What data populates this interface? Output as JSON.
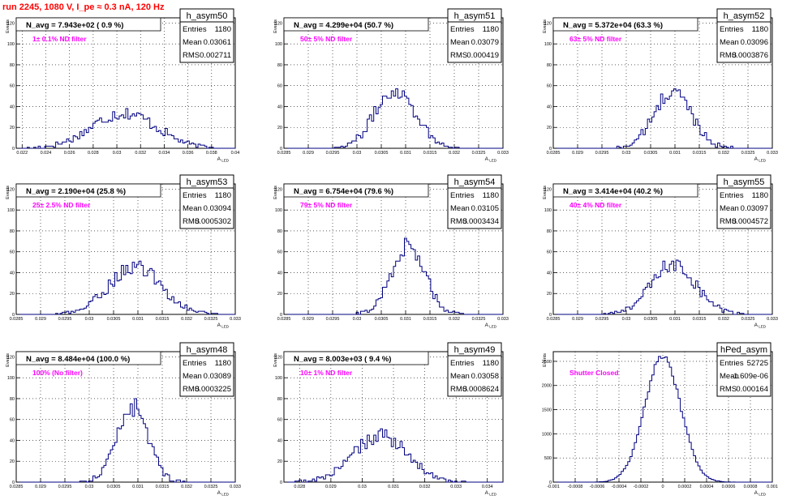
{
  "run_title": "run 2245,  1080 V, I_pe ≈ 0.3 nA, 120 Hz",
  "colors": {
    "title": "#ff0000",
    "annotation": "#ff00ff",
    "hist": "#000080",
    "text": "#000000"
  },
  "stats_labels": {
    "entries": "Entries",
    "mean": "Mean",
    "rms": "RMS"
  },
  "chart_data": [
    {
      "type": "histogram",
      "name": "h_asym50",
      "navg": "N_avg = 7.943e+02 ( 0.9 %)",
      "annotation": "1± 0.1% ND filter",
      "stats": {
        "entries": "1180",
        "mean": "0.03061",
        "rms": "0.002711"
      },
      "xlim": [
        0.0215,
        0.04
      ],
      "ylim": [
        0,
        125
      ],
      "xticks": [
        0.022,
        0.024,
        0.026,
        0.028,
        0.03,
        0.032,
        0.034,
        0.036,
        0.038,
        0.04
      ],
      "xtick_labels": [
        "0.022",
        "0.024",
        "0.026",
        "0.028",
        "0.03",
        "0.032",
        "0.034",
        "0.036",
        "0.038",
        "0.04"
      ],
      "yticks": [
        0,
        20,
        40,
        60,
        80,
        100,
        120
      ],
      "ylabel": "Events",
      "xlabel": "A",
      "center": 0.03061,
      "sigma": 0.002711,
      "peak": 34
    },
    {
      "type": "histogram",
      "name": "h_asym51",
      "navg": "N_avg = 4.299e+04 (50.7 %)",
      "annotation": "50± 5% ND filter",
      "stats": {
        "entries": "1180",
        "mean": "0.03079",
        "rms": "0.000419"
      },
      "xlim": [
        0.0285,
        0.033
      ],
      "ylim": [
        0,
        125
      ],
      "xticks": [
        0.0285,
        0.029,
        0.0295,
        0.03,
        0.0305,
        0.031,
        0.0315,
        0.032,
        0.0325,
        0.033
      ],
      "xtick_labels": [
        "0.0285",
        "0.029",
        "0.0295",
        "0.03",
        "0.0305",
        "0.031",
        "0.0315",
        "0.032",
        "0.0325",
        "0.033"
      ],
      "yticks": [
        0,
        20,
        40,
        60,
        80,
        100,
        120
      ],
      "ylabel": "Events",
      "xlabel": "A",
      "center": 0.03079,
      "sigma": 0.000419,
      "peak": 56
    },
    {
      "type": "histogram",
      "name": "h_asym52",
      "navg": "N_avg = 5.372e+04 (63.3 %)",
      "annotation": "63± 5% ND filter",
      "stats": {
        "entries": "1180",
        "mean": "0.03096",
        "rms": "0.0003876"
      },
      "xlim": [
        0.0285,
        0.033
      ],
      "ylim": [
        0,
        125
      ],
      "xticks": [
        0.0285,
        0.029,
        0.0295,
        0.03,
        0.0305,
        0.031,
        0.0315,
        0.032,
        0.0325,
        0.033
      ],
      "xtick_labels": [
        "0.0285",
        "0.029",
        "0.0295",
        "0.03",
        "0.0305",
        "0.031",
        "0.0315",
        "0.032",
        "0.0325",
        "0.033"
      ],
      "yticks": [
        0,
        20,
        40,
        60,
        80,
        100,
        120
      ],
      "ylabel": "Events",
      "xlabel": "A",
      "center": 0.03096,
      "sigma": 0.0003876,
      "peak": 54
    },
    {
      "type": "histogram",
      "name": "h_asym53",
      "navg": "N_avg = 2.190e+04 (25.8 %)",
      "annotation": "25± 2.5% ND filter",
      "stats": {
        "entries": "1180",
        "mean": "0.03094",
        "rms": "0.0005302"
      },
      "xlim": [
        0.0285,
        0.033
      ],
      "ylim": [
        0,
        125
      ],
      "xticks": [
        0.0285,
        0.029,
        0.0295,
        0.03,
        0.0305,
        0.031,
        0.0315,
        0.032,
        0.0325,
        0.033
      ],
      "xtick_labels": [
        "0.0285",
        "0.029",
        "0.0295",
        "0.03",
        "0.0305",
        "0.031",
        "0.0315",
        "0.032",
        "0.0325",
        "0.033"
      ],
      "yticks": [
        0,
        20,
        40,
        60,
        80,
        100,
        120
      ],
      "ylabel": "Events",
      "xlabel": "A",
      "center": 0.03094,
      "sigma": 0.0005302,
      "peak": 46
    },
    {
      "type": "histogram",
      "name": "h_asym54",
      "navg": "N_avg = 6.754e+04 (79.6 %)",
      "annotation": "79± 5% ND filter",
      "stats": {
        "entries": "1180",
        "mean": "0.03105",
        "rms": "0.0003434"
      },
      "xlim": [
        0.0285,
        0.033
      ],
      "ylim": [
        0,
        125
      ],
      "xticks": [
        0.0285,
        0.029,
        0.0295,
        0.03,
        0.0305,
        0.031,
        0.0315,
        0.032,
        0.0325,
        0.033
      ],
      "xtick_labels": [
        "0.0285",
        "0.029",
        "0.0295",
        "0.03",
        "0.0305",
        "0.031",
        "0.0315",
        "0.032",
        "0.0325",
        "0.033"
      ],
      "yticks": [
        0,
        20,
        40,
        60,
        80,
        100,
        120
      ],
      "ylabel": "Events",
      "xlabel": "A",
      "center": 0.03105,
      "sigma": 0.0003434,
      "peak": 66
    },
    {
      "type": "histogram",
      "name": "h_asym55",
      "navg": "N_avg = 3.414e+04 (40.2 %)",
      "annotation": "40± 4% ND filter",
      "stats": {
        "entries": "1180",
        "mean": "0.03097",
        "rms": "0.0004572"
      },
      "xlim": [
        0.0285,
        0.033
      ],
      "ylim": [
        0,
        125
      ],
      "xticks": [
        0.0285,
        0.029,
        0.0295,
        0.03,
        0.0305,
        0.031,
        0.0315,
        0.032,
        0.0325,
        0.033
      ],
      "xtick_labels": [
        "0.0285",
        "0.029",
        "0.0295",
        "0.03",
        "0.0305",
        "0.031",
        "0.0315",
        "0.032",
        "0.0325",
        "0.033"
      ],
      "yticks": [
        0,
        20,
        40,
        60,
        80,
        100,
        120
      ],
      "ylabel": "Events",
      "xlabel": "A",
      "center": 0.03097,
      "sigma": 0.0004572,
      "peak": 48
    },
    {
      "type": "histogram",
      "name": "h_asym48",
      "navg": "N_avg = 8.484e+04 (100.0 %)",
      "annotation": "100% (No filter)",
      "stats": {
        "entries": "1180",
        "mean": "0.03089",
        "rms": "0.0003225"
      },
      "xlim": [
        0.0285,
        0.033
      ],
      "ylim": [
        0,
        125
      ],
      "xticks": [
        0.0285,
        0.029,
        0.0295,
        0.03,
        0.0305,
        0.031,
        0.0315,
        0.032,
        0.0325,
        0.033
      ],
      "xtick_labels": [
        "0.0285",
        "0.029",
        "0.0295",
        "0.03",
        "0.0305",
        "0.031",
        "0.0315",
        "0.032",
        "0.0325",
        "0.033"
      ],
      "yticks": [
        0,
        20,
        40,
        60,
        80,
        100,
        120
      ],
      "ylabel": "Events",
      "xlabel": "A",
      "center": 0.03089,
      "sigma": 0.0003225,
      "peak": 72
    },
    {
      "type": "histogram",
      "name": "h_asym49",
      "navg": "N_avg = 8.003e+03 ( 9.4 %)",
      "annotation": "10± 1% ND filter",
      "stats": {
        "entries": "1180",
        "mean": "0.03058",
        "rms": "0.0008624"
      },
      "xlim": [
        0.0275,
        0.0345
      ],
      "ylim": [
        0,
        125
      ],
      "xticks": [
        0.028,
        0.029,
        0.03,
        0.031,
        0.032,
        0.033,
        0.034
      ],
      "xtick_labels": [
        "0.028",
        "0.029",
        "0.03",
        "0.031",
        "0.032",
        "0.033",
        "0.034"
      ],
      "yticks": [
        0,
        20,
        40,
        60,
        80,
        100,
        120
      ],
      "ylabel": "Events",
      "xlabel": "A",
      "center": 0.03058,
      "sigma": 0.0008624,
      "peak": 44
    },
    {
      "type": "histogram",
      "name": "hPed_asym",
      "navg": "",
      "annotation": "Shutter Closed",
      "stats": {
        "entries": "52725",
        "mean": "-1.609e-06",
        "rms": "0.000164"
      },
      "xlim": [
        -0.001,
        0.001
      ],
      "ylim": [
        0,
        2700
      ],
      "xticks": [
        -0.001,
        -0.0008,
        -0.0006,
        -0.0004,
        -0.0002,
        0,
        0.0002,
        0.0004,
        0.0006,
        0.0008,
        0.001
      ],
      "xtick_labels": [
        "-0.001",
        "-0.0008",
        "-0.0006",
        "-0.0004",
        "-0.0002",
        "0",
        "0.0002",
        "0.0004",
        "0.0006",
        "0.0008",
        "0.001"
      ],
      "yticks": [
        0,
        500,
        1000,
        1500,
        2000,
        2500
      ],
      "ylabel": "Events",
      "xlabel": "A",
      "center": -1.609e-06,
      "sigma": 0.000164,
      "peak": 2600
    }
  ]
}
